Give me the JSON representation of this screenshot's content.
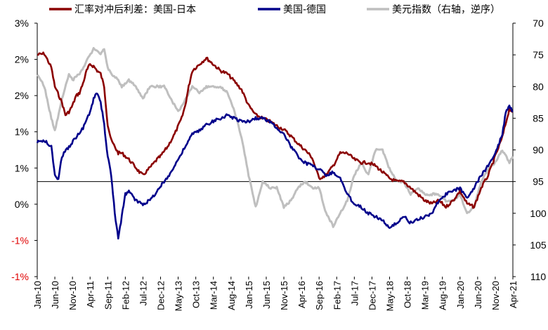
{
  "chart_data": {
    "type": "line",
    "legend_position": "top",
    "grid": false,
    "dual_axis": true,
    "y_left": {
      "tick_labels": [
        "3%",
        "2%",
        "2%",
        "1%",
        "1%",
        "0%",
        "-1%",
        "-1%"
      ],
      "range": [
        -1.5,
        2.5
      ]
    },
    "y_right": {
      "tick_labels": [
        "70",
        "75",
        "80",
        "85",
        "90",
        "95",
        "100",
        "105",
        "110"
      ],
      "range": [
        70,
        110
      ],
      "inverted": true
    },
    "x": {
      "tick_labels": [
        "Jan-10",
        "Jun-10",
        "Nov-10",
        "Apr-11",
        "Sep-11",
        "Feb-12",
        "Jul-12",
        "Dec-12",
        "May-13",
        "Oct-13",
        "Mar-14",
        "Aug-14",
        "Jan-15",
        "Jun-15",
        "Nov-15",
        "Apr-16",
        "Sep-16",
        "Feb-17",
        "Jul-17",
        "Dec-17",
        "May-18",
        "Oct-18",
        "Mar-19",
        "Aug-19",
        "Jan-20",
        "Jun-20",
        "Nov-20",
        "Apr-21"
      ],
      "range": [
        "2010-01",
        "2021-04"
      ]
    },
    "series": [
      {
        "name": "汇率对冲后利差：美国-日本",
        "color": "#8b0000",
        "axis": "left",
        "points": [
          [
            "2010-01",
            2.0
          ],
          [
            "2010-03",
            2.02
          ],
          [
            "2010-05",
            1.8
          ],
          [
            "2010-06",
            1.5
          ],
          [
            "2010-08",
            1.25
          ],
          [
            "2010-09",
            1.05
          ],
          [
            "2010-10",
            1.1
          ],
          [
            "2010-11",
            1.2
          ],
          [
            "2010-12",
            1.35
          ],
          [
            "2011-01",
            1.4
          ],
          [
            "2011-02",
            1.55
          ],
          [
            "2011-03",
            1.75
          ],
          [
            "2011-04",
            1.85
          ],
          [
            "2011-05",
            1.82
          ],
          [
            "2011-06",
            1.75
          ],
          [
            "2011-07",
            1.7
          ],
          [
            "2011-08",
            1.5
          ],
          [
            "2011-09",
            0.9
          ],
          [
            "2011-10",
            0.65
          ],
          [
            "2011-11",
            0.55
          ],
          [
            "2011-12",
            0.45
          ],
          [
            "2012-01",
            0.45
          ],
          [
            "2012-03",
            0.35
          ],
          [
            "2012-05",
            0.22
          ],
          [
            "2012-06",
            0.15
          ],
          [
            "2012-07",
            0.1
          ],
          [
            "2012-09",
            0.22
          ],
          [
            "2012-11",
            0.35
          ],
          [
            "2012-12",
            0.4
          ],
          [
            "2013-02",
            0.55
          ],
          [
            "2013-04",
            0.75
          ],
          [
            "2013-06",
            1.0
          ],
          [
            "2013-07",
            1.2
          ],
          [
            "2013-08",
            1.5
          ],
          [
            "2013-09",
            1.75
          ],
          [
            "2013-11",
            1.85
          ],
          [
            "2014-01",
            1.95
          ],
          [
            "2014-03",
            1.85
          ],
          [
            "2014-05",
            1.75
          ],
          [
            "2014-07",
            1.7
          ],
          [
            "2014-09",
            1.58
          ],
          [
            "2014-11",
            1.45
          ],
          [
            "2015-01",
            1.2
          ],
          [
            "2015-03",
            1.05
          ],
          [
            "2015-05",
            1.0
          ],
          [
            "2015-07",
            0.95
          ],
          [
            "2015-09",
            0.88
          ],
          [
            "2015-11",
            0.82
          ],
          [
            "2016-01",
            0.72
          ],
          [
            "2016-03",
            0.6
          ],
          [
            "2016-05",
            0.5
          ],
          [
            "2016-07",
            0.38
          ],
          [
            "2016-09",
            0.05
          ],
          [
            "2016-11",
            0.1
          ],
          [
            "2017-01",
            0.25
          ],
          [
            "2017-03",
            0.45
          ],
          [
            "2017-05",
            0.45
          ],
          [
            "2017-07",
            0.35
          ],
          [
            "2017-09",
            0.3
          ],
          [
            "2017-11",
            0.3
          ],
          [
            "2018-01",
            0.25
          ],
          [
            "2018-03",
            0.15
          ],
          [
            "2018-05",
            0.05
          ],
          [
            "2018-07",
            0.0
          ],
          [
            "2018-09",
            0.0
          ],
          [
            "2018-11",
            -0.1
          ],
          [
            "2019-01",
            -0.2
          ],
          [
            "2019-03",
            -0.3
          ],
          [
            "2019-05",
            -0.35
          ],
          [
            "2019-07",
            -0.3
          ],
          [
            "2019-09",
            -0.4
          ],
          [
            "2019-11",
            -0.3
          ],
          [
            "2020-01",
            -0.15
          ],
          [
            "2020-03",
            -0.35
          ],
          [
            "2020-05",
            -0.4
          ],
          [
            "2020-07",
            -0.1
          ],
          [
            "2020-09",
            0.1
          ],
          [
            "2020-11",
            0.4
          ],
          [
            "2021-01",
            0.7
          ],
          [
            "2021-03",
            1.15
          ],
          [
            "2021-04",
            1.1
          ]
        ]
      },
      {
        "name": "美国-德国",
        "color": "#00008b",
        "axis": "left",
        "points": [
          [
            "2010-01",
            0.62
          ],
          [
            "2010-03",
            0.65
          ],
          [
            "2010-05",
            0.55
          ],
          [
            "2010-06",
            0.1
          ],
          [
            "2010-07",
            0.05
          ],
          [
            "2010-08",
            0.4
          ],
          [
            "2010-10",
            0.55
          ],
          [
            "2010-12",
            0.7
          ],
          [
            "2011-02",
            0.85
          ],
          [
            "2011-04",
            1.1
          ],
          [
            "2011-05",
            1.3
          ],
          [
            "2011-06",
            1.4
          ],
          [
            "2011-07",
            1.25
          ],
          [
            "2011-08",
            0.9
          ],
          [
            "2011-09",
            0.4
          ],
          [
            "2011-10",
            0.1
          ],
          [
            "2011-11",
            -0.5
          ],
          [
            "2011-12",
            -0.9
          ],
          [
            "2012-01",
            -0.55
          ],
          [
            "2012-02",
            -0.2
          ],
          [
            "2012-03",
            -0.15
          ],
          [
            "2012-05",
            -0.3
          ],
          [
            "2012-07",
            -0.35
          ],
          [
            "2012-09",
            -0.3
          ],
          [
            "2012-11",
            -0.15
          ],
          [
            "2013-01",
            0.0
          ],
          [
            "2013-03",
            0.15
          ],
          [
            "2013-05",
            0.35
          ],
          [
            "2013-07",
            0.55
          ],
          [
            "2013-09",
            0.75
          ],
          [
            "2013-11",
            0.8
          ],
          [
            "2014-01",
            0.9
          ],
          [
            "2014-03",
            0.95
          ],
          [
            "2014-05",
            1.0
          ],
          [
            "2014-07",
            1.05
          ],
          [
            "2014-09",
            1.0
          ],
          [
            "2014-11",
            0.95
          ],
          [
            "2015-01",
            0.95
          ],
          [
            "2015-03",
            1.0
          ],
          [
            "2015-05",
            1.0
          ],
          [
            "2015-07",
            0.95
          ],
          [
            "2015-09",
            0.85
          ],
          [
            "2015-11",
            0.75
          ],
          [
            "2016-01",
            0.55
          ],
          [
            "2016-03",
            0.4
          ],
          [
            "2016-05",
            0.3
          ],
          [
            "2016-07",
            0.25
          ],
          [
            "2016-09",
            0.2
          ],
          [
            "2016-11",
            0.1
          ],
          [
            "2017-01",
            0.15
          ],
          [
            "2017-03",
            0.05
          ],
          [
            "2017-05",
            -0.2
          ],
          [
            "2017-07",
            -0.35
          ],
          [
            "2017-09",
            -0.4
          ],
          [
            "2017-11",
            -0.5
          ],
          [
            "2018-01",
            -0.55
          ],
          [
            "2018-03",
            -0.6
          ],
          [
            "2018-05",
            -0.75
          ],
          [
            "2018-07",
            -0.65
          ],
          [
            "2018-09",
            -0.55
          ],
          [
            "2018-11",
            -0.65
          ],
          [
            "2019-01",
            -0.6
          ],
          [
            "2019-03",
            -0.55
          ],
          [
            "2019-05",
            -0.5
          ],
          [
            "2019-07",
            -0.3
          ],
          [
            "2019-09",
            -0.2
          ],
          [
            "2019-11",
            -0.15
          ],
          [
            "2020-01",
            -0.1
          ],
          [
            "2020-03",
            -0.25
          ],
          [
            "2020-05",
            -0.1
          ],
          [
            "2020-07",
            0.1
          ],
          [
            "2020-09",
            0.25
          ],
          [
            "2020-11",
            0.45
          ],
          [
            "2021-01",
            0.75
          ],
          [
            "2021-02",
            1.1
          ],
          [
            "2021-03",
            1.2
          ],
          [
            "2021-04",
            1.1
          ]
        ]
      },
      {
        "name": "美元指数（右轴，逆序）",
        "color": "#bfbfbf",
        "axis": "right",
        "points": [
          [
            "2010-01",
            78
          ],
          [
            "2010-03",
            80
          ],
          [
            "2010-05",
            85
          ],
          [
            "2010-06",
            87
          ],
          [
            "2010-08",
            82
          ],
          [
            "2010-10",
            78
          ],
          [
            "2010-11",
            79
          ],
          [
            "2011-01",
            78
          ],
          [
            "2011-03",
            76
          ],
          [
            "2011-05",
            74
          ],
          [
            "2011-07",
            75
          ],
          [
            "2011-08",
            74
          ],
          [
            "2011-09",
            77
          ],
          [
            "2011-10",
            78
          ],
          [
            "2011-12",
            79
          ],
          [
            "2012-01",
            80
          ],
          [
            "2012-03",
            79
          ],
          [
            "2012-05",
            80
          ],
          [
            "2012-07",
            82
          ],
          [
            "2012-09",
            80
          ],
          [
            "2012-11",
            80
          ],
          [
            "2013-01",
            80
          ],
          [
            "2013-03",
            82
          ],
          [
            "2013-05",
            84
          ],
          [
            "2013-07",
            82
          ],
          [
            "2013-09",
            80
          ],
          [
            "2013-11",
            81
          ],
          [
            "2014-01",
            80
          ],
          [
            "2014-03",
            80
          ],
          [
            "2014-05",
            80
          ],
          [
            "2014-07",
            81
          ],
          [
            "2014-09",
            84
          ],
          [
            "2014-11",
            88
          ],
          [
            "2015-01",
            94
          ],
          [
            "2015-03",
            99
          ],
          [
            "2015-05",
            95
          ],
          [
            "2015-07",
            96
          ],
          [
            "2015-09",
            96
          ],
          [
            "2015-11",
            99
          ],
          [
            "2016-01",
            98
          ],
          [
            "2016-03",
            96
          ],
          [
            "2016-05",
            95
          ],
          [
            "2016-07",
            96
          ],
          [
            "2016-09",
            96
          ],
          [
            "2016-11",
            100
          ],
          [
            "2017-01",
            102
          ],
          [
            "2017-03",
            100
          ],
          [
            "2017-05",
            98
          ],
          [
            "2017-07",
            94
          ],
          [
            "2017-09",
            92
          ],
          [
            "2017-11",
            94
          ],
          [
            "2018-01",
            90
          ],
          [
            "2018-03",
            90
          ],
          [
            "2018-05",
            93
          ],
          [
            "2018-07",
            95
          ],
          [
            "2018-09",
            95
          ],
          [
            "2018-11",
            97
          ],
          [
            "2019-01",
            96
          ],
          [
            "2019-03",
            97
          ],
          [
            "2019-05",
            97
          ],
          [
            "2019-07",
            97
          ],
          [
            "2019-09",
            98
          ],
          [
            "2019-11",
            98
          ],
          [
            "2020-01",
            97
          ],
          [
            "2020-03",
            100
          ],
          [
            "2020-05",
            99
          ],
          [
            "2020-07",
            95
          ],
          [
            "2020-09",
            93
          ],
          [
            "2020-11",
            92
          ],
          [
            "2021-01",
            90
          ],
          [
            "2021-02",
            91
          ],
          [
            "2021-03",
            92
          ],
          [
            "2021-04",
            91
          ]
        ]
      }
    ]
  }
}
